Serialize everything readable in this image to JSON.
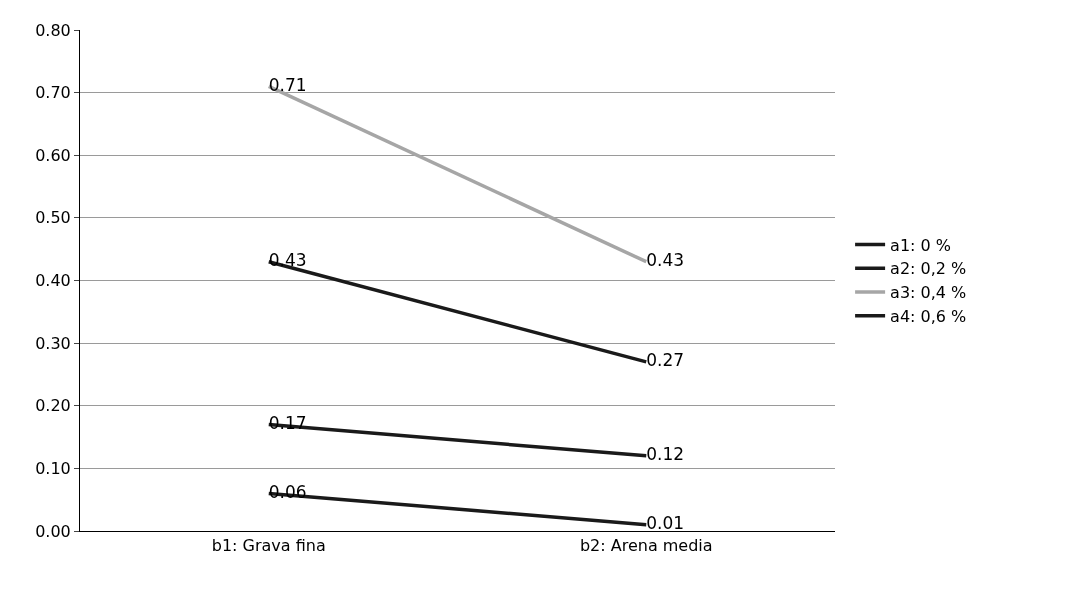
{
  "chart_data": {
    "type": "line",
    "categories": [
      "b1: Grava fina",
      "b2: Arena media"
    ],
    "series": [
      {
        "name": "a1: 0 %",
        "color": "#1a1a1a",
        "values": [
          0.06,
          0.01
        ]
      },
      {
        "name": "a2: 0,2 %",
        "color": "#1a1a1a",
        "values": [
          0.17,
          0.12
        ]
      },
      {
        "name": "a3: 0,4 %",
        "color": "#a6a6a6",
        "values": [
          0.71,
          0.43
        ]
      },
      {
        "name": "a4: 0,6 %",
        "color": "#1a1a1a",
        "values": [
          0.43,
          0.27
        ]
      }
    ],
    "ylim": [
      0,
      0.8
    ],
    "yticks": [
      {
        "value": 0,
        "label": "0.00"
      },
      {
        "value": 0.1,
        "label": "0.10"
      },
      {
        "value": 0.2,
        "label": "0.20"
      },
      {
        "value": 0.3,
        "label": "0.30"
      },
      {
        "value": 0.4,
        "label": "0.40"
      },
      {
        "value": 0.5,
        "label": "0.50"
      },
      {
        "value": 0.6,
        "label": "0.60"
      },
      {
        "value": 0.7,
        "label": "0.70"
      },
      {
        "value": 0.8,
        "label": "0.80"
      }
    ],
    "grid": "y",
    "legend": "right",
    "marker": "none",
    "line_style": "solid",
    "data_labels": true
  }
}
